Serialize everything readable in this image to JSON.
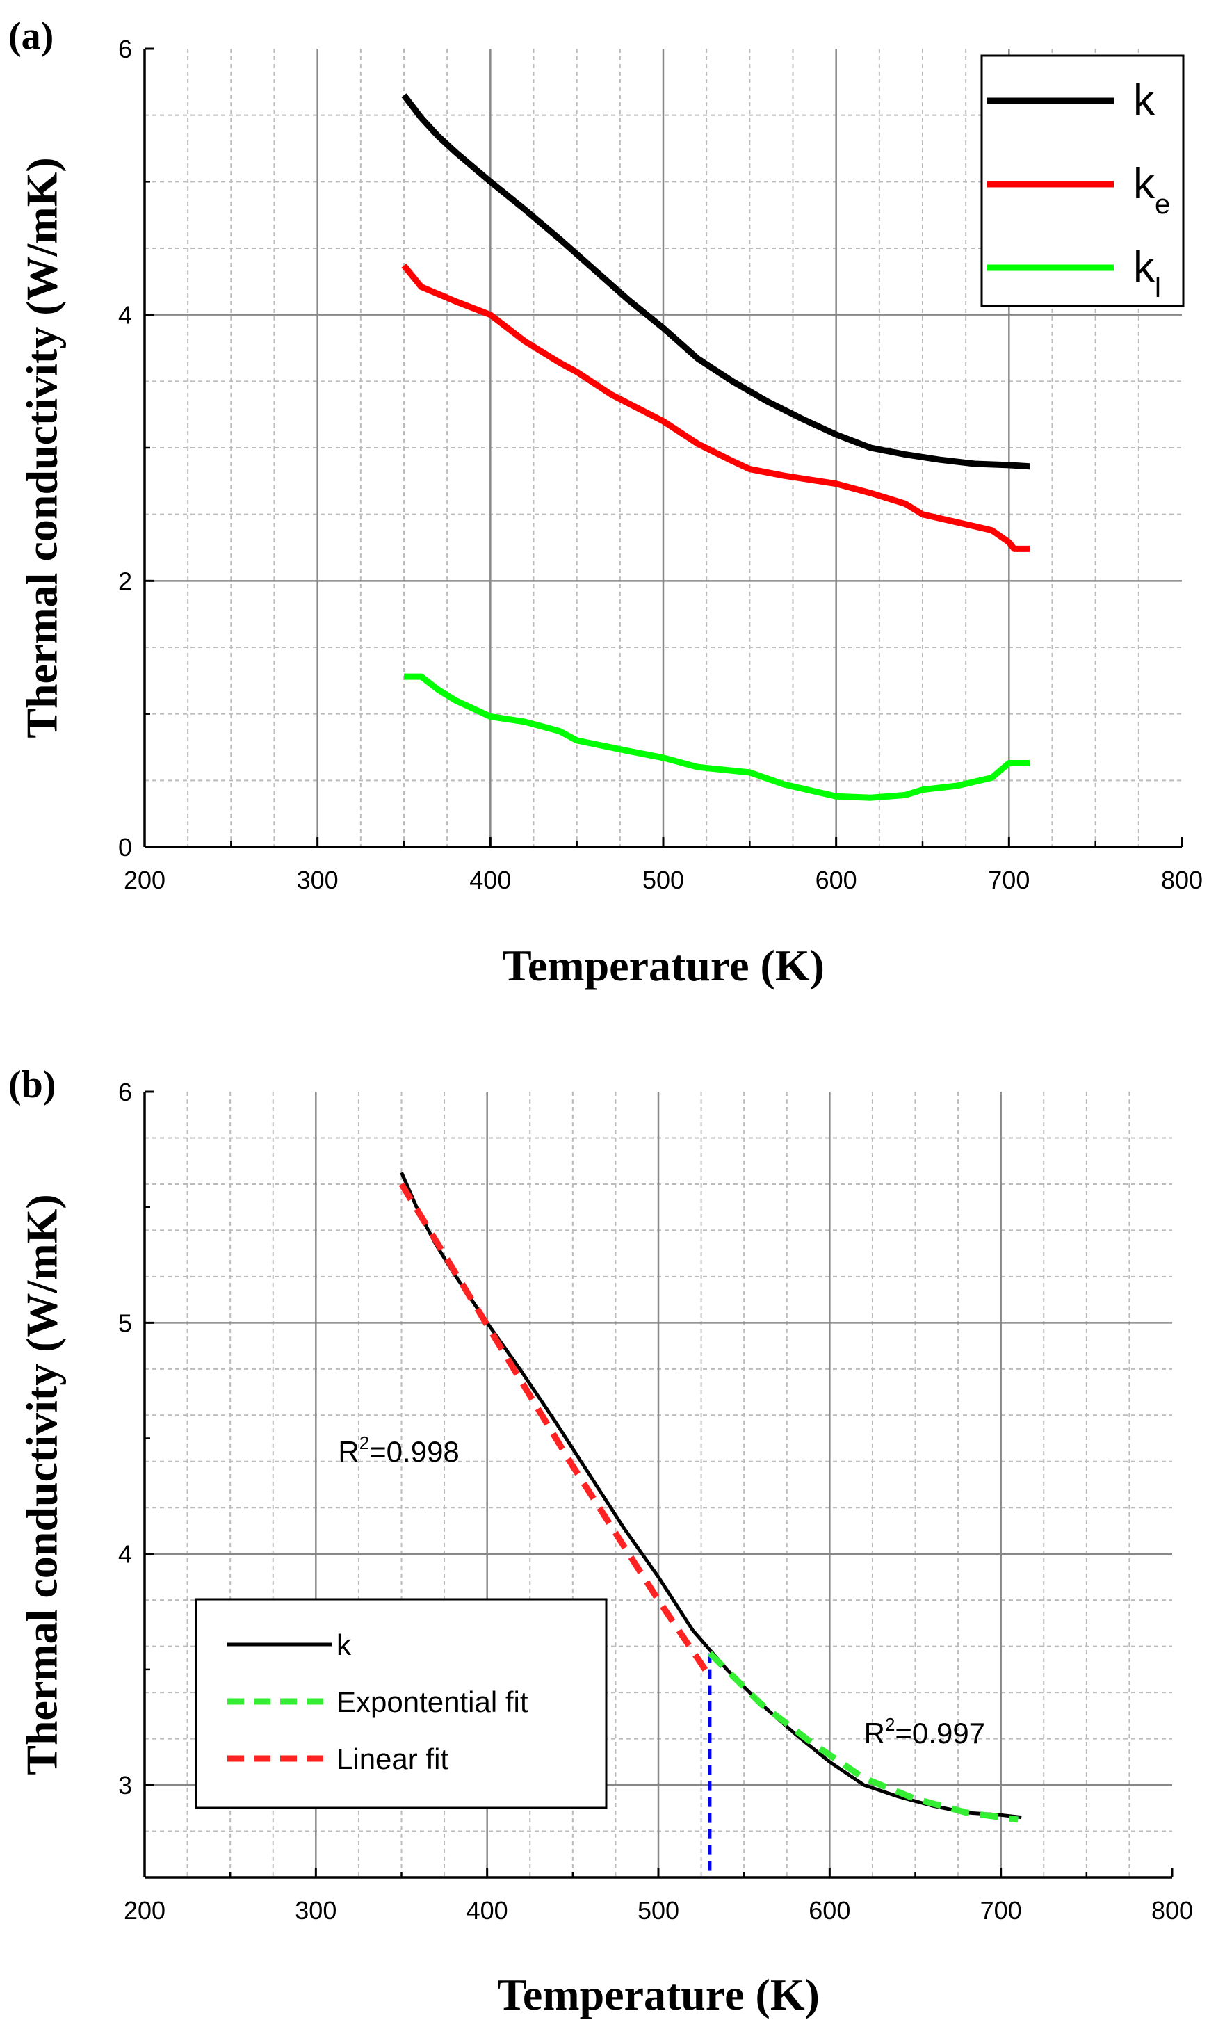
{
  "chart_data": [
    {
      "panel": "(a)",
      "type": "line",
      "title": "",
      "xlabel": "Temperature (K)",
      "ylabel": "Thermal conductivity (W/mK)",
      "xlim": [
        200,
        800
      ],
      "ylim": [
        0,
        6
      ],
      "xticks": [
        "200",
        "300",
        "400",
        "500",
        "600",
        "700",
        "800"
      ],
      "yticks": [
        "0",
        "2",
        "4",
        "6"
      ],
      "grid": "major and minor",
      "legend_position": "top-right",
      "series": [
        {
          "name": "k",
          "legend_main": "k",
          "legend_sub": "",
          "color": "#000000",
          "style": "solid",
          "points": [
            [
              350,
              5.65
            ],
            [
              360,
              5.48
            ],
            [
              370,
              5.34
            ],
            [
              380,
              5.22
            ],
            [
              390,
              5.11
            ],
            [
              400,
              5.0
            ],
            [
              420,
              4.79
            ],
            [
              440,
              4.57
            ],
            [
              460,
              4.34
            ],
            [
              480,
              4.11
            ],
            [
              500,
              3.9
            ],
            [
              520,
              3.67
            ],
            [
              540,
              3.5
            ],
            [
              560,
              3.35
            ],
            [
              580,
              3.22
            ],
            [
              600,
              3.1
            ],
            [
              620,
              3.0
            ],
            [
              640,
              2.95
            ],
            [
              660,
              2.91
            ],
            [
              680,
              2.88
            ],
            [
              700,
              2.87
            ],
            [
              712,
              2.86
            ]
          ]
        },
        {
          "name": "ke",
          "legend_main": "k",
          "legend_sub": "e",
          "color": "#ff0000",
          "style": "solid",
          "points": [
            [
              350,
              4.37
            ],
            [
              360,
              4.21
            ],
            [
              380,
              4.1
            ],
            [
              400,
              4.0
            ],
            [
              420,
              3.8
            ],
            [
              440,
              3.64
            ],
            [
              450,
              3.57
            ],
            [
              470,
              3.4
            ],
            [
              500,
              3.2
            ],
            [
              520,
              3.03
            ],
            [
              540,
              2.9
            ],
            [
              550,
              2.84
            ],
            [
              570,
              2.79
            ],
            [
              600,
              2.73
            ],
            [
              620,
              2.66
            ],
            [
              640,
              2.58
            ],
            [
              650,
              2.5
            ],
            [
              670,
              2.44
            ],
            [
              690,
              2.38
            ],
            [
              700,
              2.29
            ],
            [
              703,
              2.24
            ],
            [
              712,
              2.24
            ]
          ]
        },
        {
          "name": "kl",
          "legend_main": "k",
          "legend_sub": "l",
          "color": "#00ff00",
          "style": "solid",
          "points": [
            [
              350,
              1.28
            ],
            [
              360,
              1.28
            ],
            [
              370,
              1.18
            ],
            [
              380,
              1.1
            ],
            [
              400,
              0.98
            ],
            [
              420,
              0.94
            ],
            [
              440,
              0.87
            ],
            [
              450,
              0.8
            ],
            [
              480,
              0.72
            ],
            [
              500,
              0.67
            ],
            [
              520,
              0.6
            ],
            [
              550,
              0.56
            ],
            [
              570,
              0.47
            ],
            [
              600,
              0.38
            ],
            [
              620,
              0.37
            ],
            [
              640,
              0.39
            ],
            [
              650,
              0.43
            ],
            [
              670,
              0.46
            ],
            [
              690,
              0.52
            ],
            [
              700,
              0.63
            ],
            [
              712,
              0.63
            ]
          ]
        }
      ]
    },
    {
      "panel": "(b)",
      "type": "line",
      "title": "",
      "xlabel": "Temperature (K)",
      "ylabel": "Thermal conductivity (W/mK)",
      "xlim": [
        200,
        800
      ],
      "ylim": [
        2.6,
        6
      ],
      "xticks": [
        "200",
        "300",
        "400",
        "500",
        "600",
        "700",
        "800"
      ],
      "yticks": [
        "3",
        "4",
        "5",
        "6"
      ],
      "grid": "major and minor",
      "legend_position": "bottom-left",
      "annotations": [
        {
          "prefix": "R",
          "sup": "2",
          "suffix": "=0.998",
          "x": 313,
          "y": 4.4
        },
        {
          "prefix": "R",
          "sup": "2",
          "suffix": "=0.997",
          "x": 620,
          "y": 3.18
        }
      ],
      "vline": {
        "x": 530,
        "y_from": 2.6,
        "y_to": 3.57,
        "color": "#0000ff"
      },
      "series": [
        {
          "name": "k",
          "legend_label": "k",
          "color": "#000000",
          "style": "solid",
          "points": [
            [
              350,
              5.65
            ],
            [
              360,
              5.48
            ],
            [
              370,
              5.34
            ],
            [
              380,
              5.22
            ],
            [
              390,
              5.11
            ],
            [
              400,
              5.0
            ],
            [
              420,
              4.79
            ],
            [
              440,
              4.57
            ],
            [
              460,
              4.34
            ],
            [
              480,
              4.11
            ],
            [
              500,
              3.9
            ],
            [
              520,
              3.67
            ],
            [
              540,
              3.5
            ],
            [
              560,
              3.35
            ],
            [
              580,
              3.22
            ],
            [
              600,
              3.1
            ],
            [
              620,
              3.0
            ],
            [
              640,
              2.95
            ],
            [
              660,
              2.91
            ],
            [
              680,
              2.88
            ],
            [
              700,
              2.87
            ],
            [
              712,
              2.86
            ]
          ]
        },
        {
          "name": "Expontential fit",
          "legend_label": "Expontential fit",
          "color": "#33ee33",
          "style": "dashed",
          "points": [
            [
              530,
              3.57
            ],
            [
              560,
              3.35
            ],
            [
              590,
              3.18
            ],
            [
              620,
              3.03
            ],
            [
              650,
              2.94
            ],
            [
              680,
              2.88
            ],
            [
              710,
              2.85
            ]
          ]
        },
        {
          "name": "Linear fit",
          "legend_label": "Linear fit",
          "color": "#ff2222",
          "style": "dashed",
          "points": [
            [
              350,
              5.6
            ],
            [
              400,
              4.99
            ],
            [
              450,
              4.38
            ],
            [
              500,
              3.8
            ],
            [
              530,
              3.47
            ]
          ]
        }
      ]
    }
  ]
}
